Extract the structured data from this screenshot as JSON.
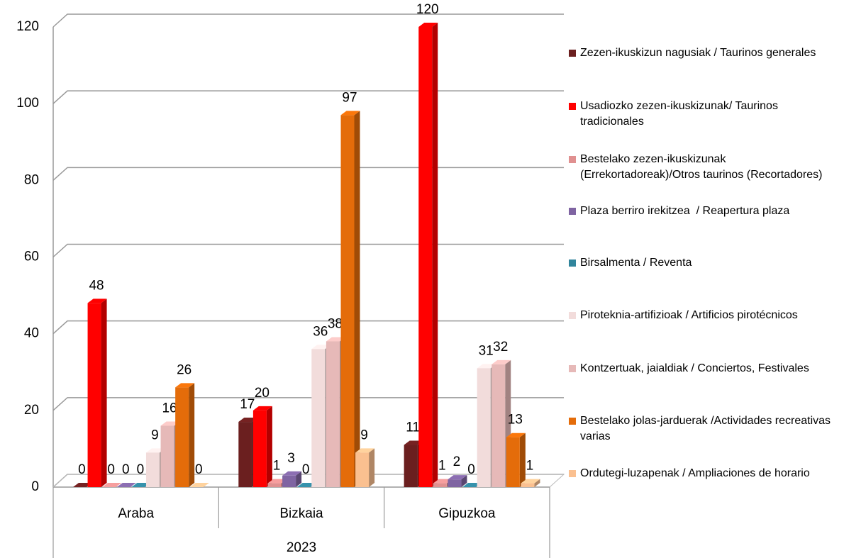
{
  "chart_data": {
    "type": "bar3d",
    "group_label": "2023",
    "categories": [
      "Araba",
      "Bizkaia",
      "Gipuzkoa"
    ],
    "series": [
      {
        "name": "Zezen-ikuskizun nagusiak / Taurinos generales",
        "color": "#6b1f1f",
        "values": [
          0,
          17,
          11
        ]
      },
      {
        "name": "Usadiozko zezen-ikuskizunak/ Taurinos tradicionales",
        "color": "#ff0000",
        "values": [
          48,
          20,
          120
        ]
      },
      {
        "name": "Bestelako zezen-ikuskizunak (Errekortadoreak)/Otros taurinos (Recortadores)",
        "color": "#e09090",
        "values": [
          0,
          1,
          1
        ]
      },
      {
        "name": "Plaza berriro irekitzea  / Reapertura plaza",
        "color": "#7f64a2",
        "values": [
          0,
          3,
          2
        ]
      },
      {
        "name": "Birsalmenta / Reventa",
        "color": "#31859c",
        "values": [
          0,
          0,
          0
        ]
      },
      {
        "name": "Piroteknia-artifizioak / Artificios pirotécnicos",
        "color": "#f2dcdb",
        "values": [
          9,
          36,
          31
        ]
      },
      {
        "name": "Kontzertuak, jaialdiak / Conciertos, Festivales",
        "color": "#e6b9b8",
        "values": [
          16,
          38,
          32
        ]
      },
      {
        "name": "Bestelako jolas-jarduerak /Actividades recreativas varias",
        "color": "#e46c0a",
        "values": [
          26,
          97,
          13
        ]
      },
      {
        "name": "Ordutegi-luzapenak / Ampliaciones de horario",
        "color": "#fac090",
        "values": [
          0,
          9,
          1
        ]
      }
    ],
    "ylim": [
      0,
      120
    ],
    "yticks": [
      0,
      20,
      40,
      60,
      80,
      100,
      120
    ],
    "grid": true,
    "legend": "right"
  }
}
